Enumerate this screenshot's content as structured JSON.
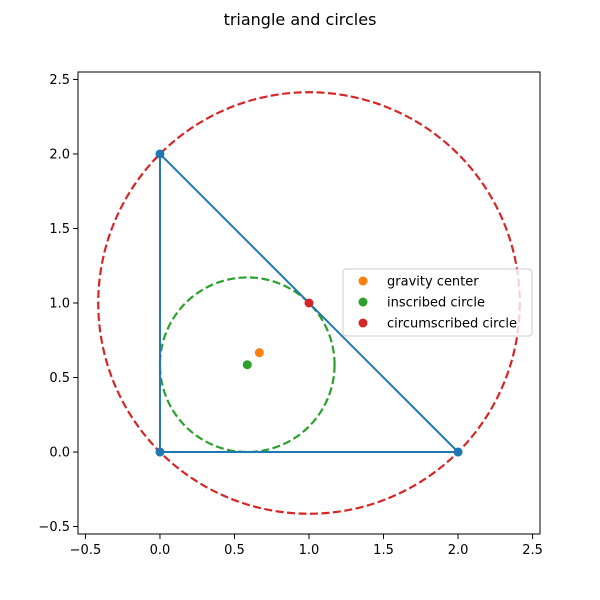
{
  "figure": {
    "title": "triangle and circles"
  },
  "chart_data": {
    "type": "scatter",
    "title": "triangle and circles",
    "xlabel": "",
    "ylabel": "",
    "xlim": [
      -0.55,
      2.55
    ],
    "ylim": [
      -0.55,
      2.55
    ],
    "grid": false,
    "aspect": "equal",
    "x_ticks": [
      -0.5,
      0.0,
      0.5,
      1.0,
      1.5,
      2.0,
      2.5
    ],
    "x_tick_labels": [
      "−0.5",
      "0.0",
      "0.5",
      "1.0",
      "1.5",
      "2.0",
      "2.5"
    ],
    "y_ticks": [
      -0.5,
      0.0,
      0.5,
      1.0,
      1.5,
      2.0,
      2.5
    ],
    "y_tick_labels": [
      "−0.5",
      "0.0",
      "0.5",
      "1.0",
      "1.5",
      "2.0",
      "2.5"
    ],
    "triangle": {
      "color": "#1f77b4",
      "vertices": [
        [
          0,
          0
        ],
        [
          2,
          0
        ],
        [
          0,
          2
        ]
      ]
    },
    "circles": [
      {
        "key": "circumscribed",
        "cx": 1.0,
        "cy": 1.0,
        "r": 1.4142,
        "color": "#d62728",
        "style": "dashed"
      },
      {
        "key": "inscribed",
        "cx": 0.5858,
        "cy": 0.5858,
        "r": 0.5858,
        "color": "#2ca02c",
        "style": "dashed"
      }
    ],
    "series": [
      {
        "name": "gravity center",
        "color": "#ff7f0e",
        "points": [
          [
            0.6667,
            0.6667
          ]
        ]
      },
      {
        "name": "inscribed circle",
        "color": "#2ca02c",
        "points": [
          [
            0.5858,
            0.5858
          ]
        ]
      },
      {
        "name": "circumscribed circle",
        "color": "#d62728",
        "points": [
          [
            1.0,
            1.0
          ]
        ]
      }
    ],
    "legend": {
      "placement": "center-right",
      "entries": [
        "gravity center",
        "inscribed circle",
        "circumscribed circle"
      ]
    }
  }
}
